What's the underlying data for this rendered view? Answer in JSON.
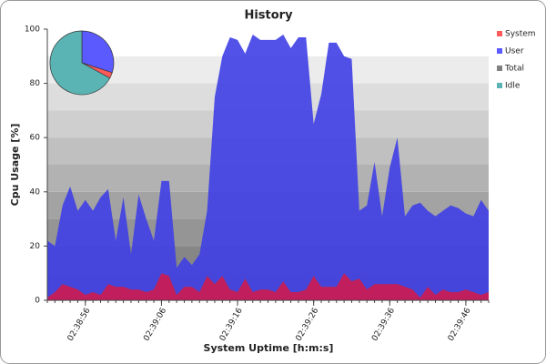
{
  "chart_data": [
    {
      "type": "area",
      "title": "History",
      "x_label": "System Uptime [h:m:s]",
      "y_label": "Cpu Usage [%]",
      "x": [
        "02:38:51",
        "02:38:52",
        "02:38:53",
        "02:38:54",
        "02:38:55",
        "02:38:56",
        "02:38:57",
        "02:38:58",
        "02:38:59",
        "02:39:00",
        "02:39:01",
        "02:39:02",
        "02:39:03",
        "02:39:04",
        "02:39:05",
        "02:39:06",
        "02:39:07",
        "02:39:08",
        "02:39:09",
        "02:39:10",
        "02:39:11",
        "02:39:12",
        "02:39:13",
        "02:39:14",
        "02:39:15",
        "02:39:16",
        "02:39:17",
        "02:39:18",
        "02:39:19",
        "02:39:20",
        "02:39:21",
        "02:39:22",
        "02:39:23",
        "02:39:24",
        "02:39:25",
        "02:39:26",
        "02:39:27",
        "02:39:28",
        "02:39:29",
        "02:39:30",
        "02:39:31",
        "02:39:32",
        "02:39:33",
        "02:39:34",
        "02:39:35",
        "02:39:36",
        "02:39:37",
        "02:39:38",
        "02:39:39",
        "02:39:40",
        "02:39:41",
        "02:39:42",
        "02:39:43",
        "02:39:44",
        "02:39:45",
        "02:39:46",
        "02:39:47",
        "02:39:48",
        "02:39:49"
      ],
      "series": [
        {
          "name": "System",
          "color": "#c8145a",
          "values": [
            1,
            3,
            6,
            5,
            4,
            2,
            3,
            2,
            6,
            5,
            5,
            4,
            4,
            3,
            4,
            10,
            9,
            2,
            5,
            5,
            3,
            9,
            6,
            9,
            4,
            3,
            8,
            3,
            4,
            4,
            3,
            7,
            3,
            3,
            4,
            9,
            5,
            5,
            5,
            10,
            7,
            8,
            4,
            6,
            6,
            6,
            6,
            5,
            4,
            1,
            5,
            2,
            4,
            3,
            3,
            4,
            3,
            2,
            3
          ]
        },
        {
          "name": "User",
          "color": "#3f3fe6",
          "values": [
            21,
            17,
            29,
            37,
            29,
            35,
            30,
            36,
            35,
            17,
            33,
            13,
            35,
            27,
            18,
            34,
            35,
            10,
            11,
            8,
            14,
            24,
            69,
            81,
            93,
            93,
            83,
            95,
            92,
            92,
            93,
            91,
            90,
            94,
            93,
            56,
            71,
            90,
            90,
            80,
            82,
            25,
            31,
            45,
            25,
            43,
            54,
            26,
            31,
            35,
            28,
            29,
            29,
            32,
            31,
            28,
            28,
            35,
            30
          ]
        }
      ],
      "legend": [
        {
          "name": "System",
          "color": "#ff5a5a"
        },
        {
          "name": "User",
          "color": "#5a5aff"
        },
        {
          "name": "Total",
          "color": "#808080"
        },
        {
          "name": "Idle",
          "color": "#5ab4b4"
        }
      ],
      "xlim": [
        "02:38:51",
        "02:39:49"
      ],
      "xticks": [
        "02:38:56",
        "02:39:06",
        "02:39:16",
        "02:39:26",
        "02:39:36",
        "02:39:46"
      ],
      "ylim": [
        0,
        100
      ],
      "yticks": [
        0,
        20,
        40,
        60,
        80,
        100
      ]
    },
    {
      "type": "pie",
      "values": [
        30,
        3,
        67
      ],
      "colors": [
        "#5a5aff",
        "#ff5a5a",
        "#5ab4b4"
      ]
    }
  ]
}
